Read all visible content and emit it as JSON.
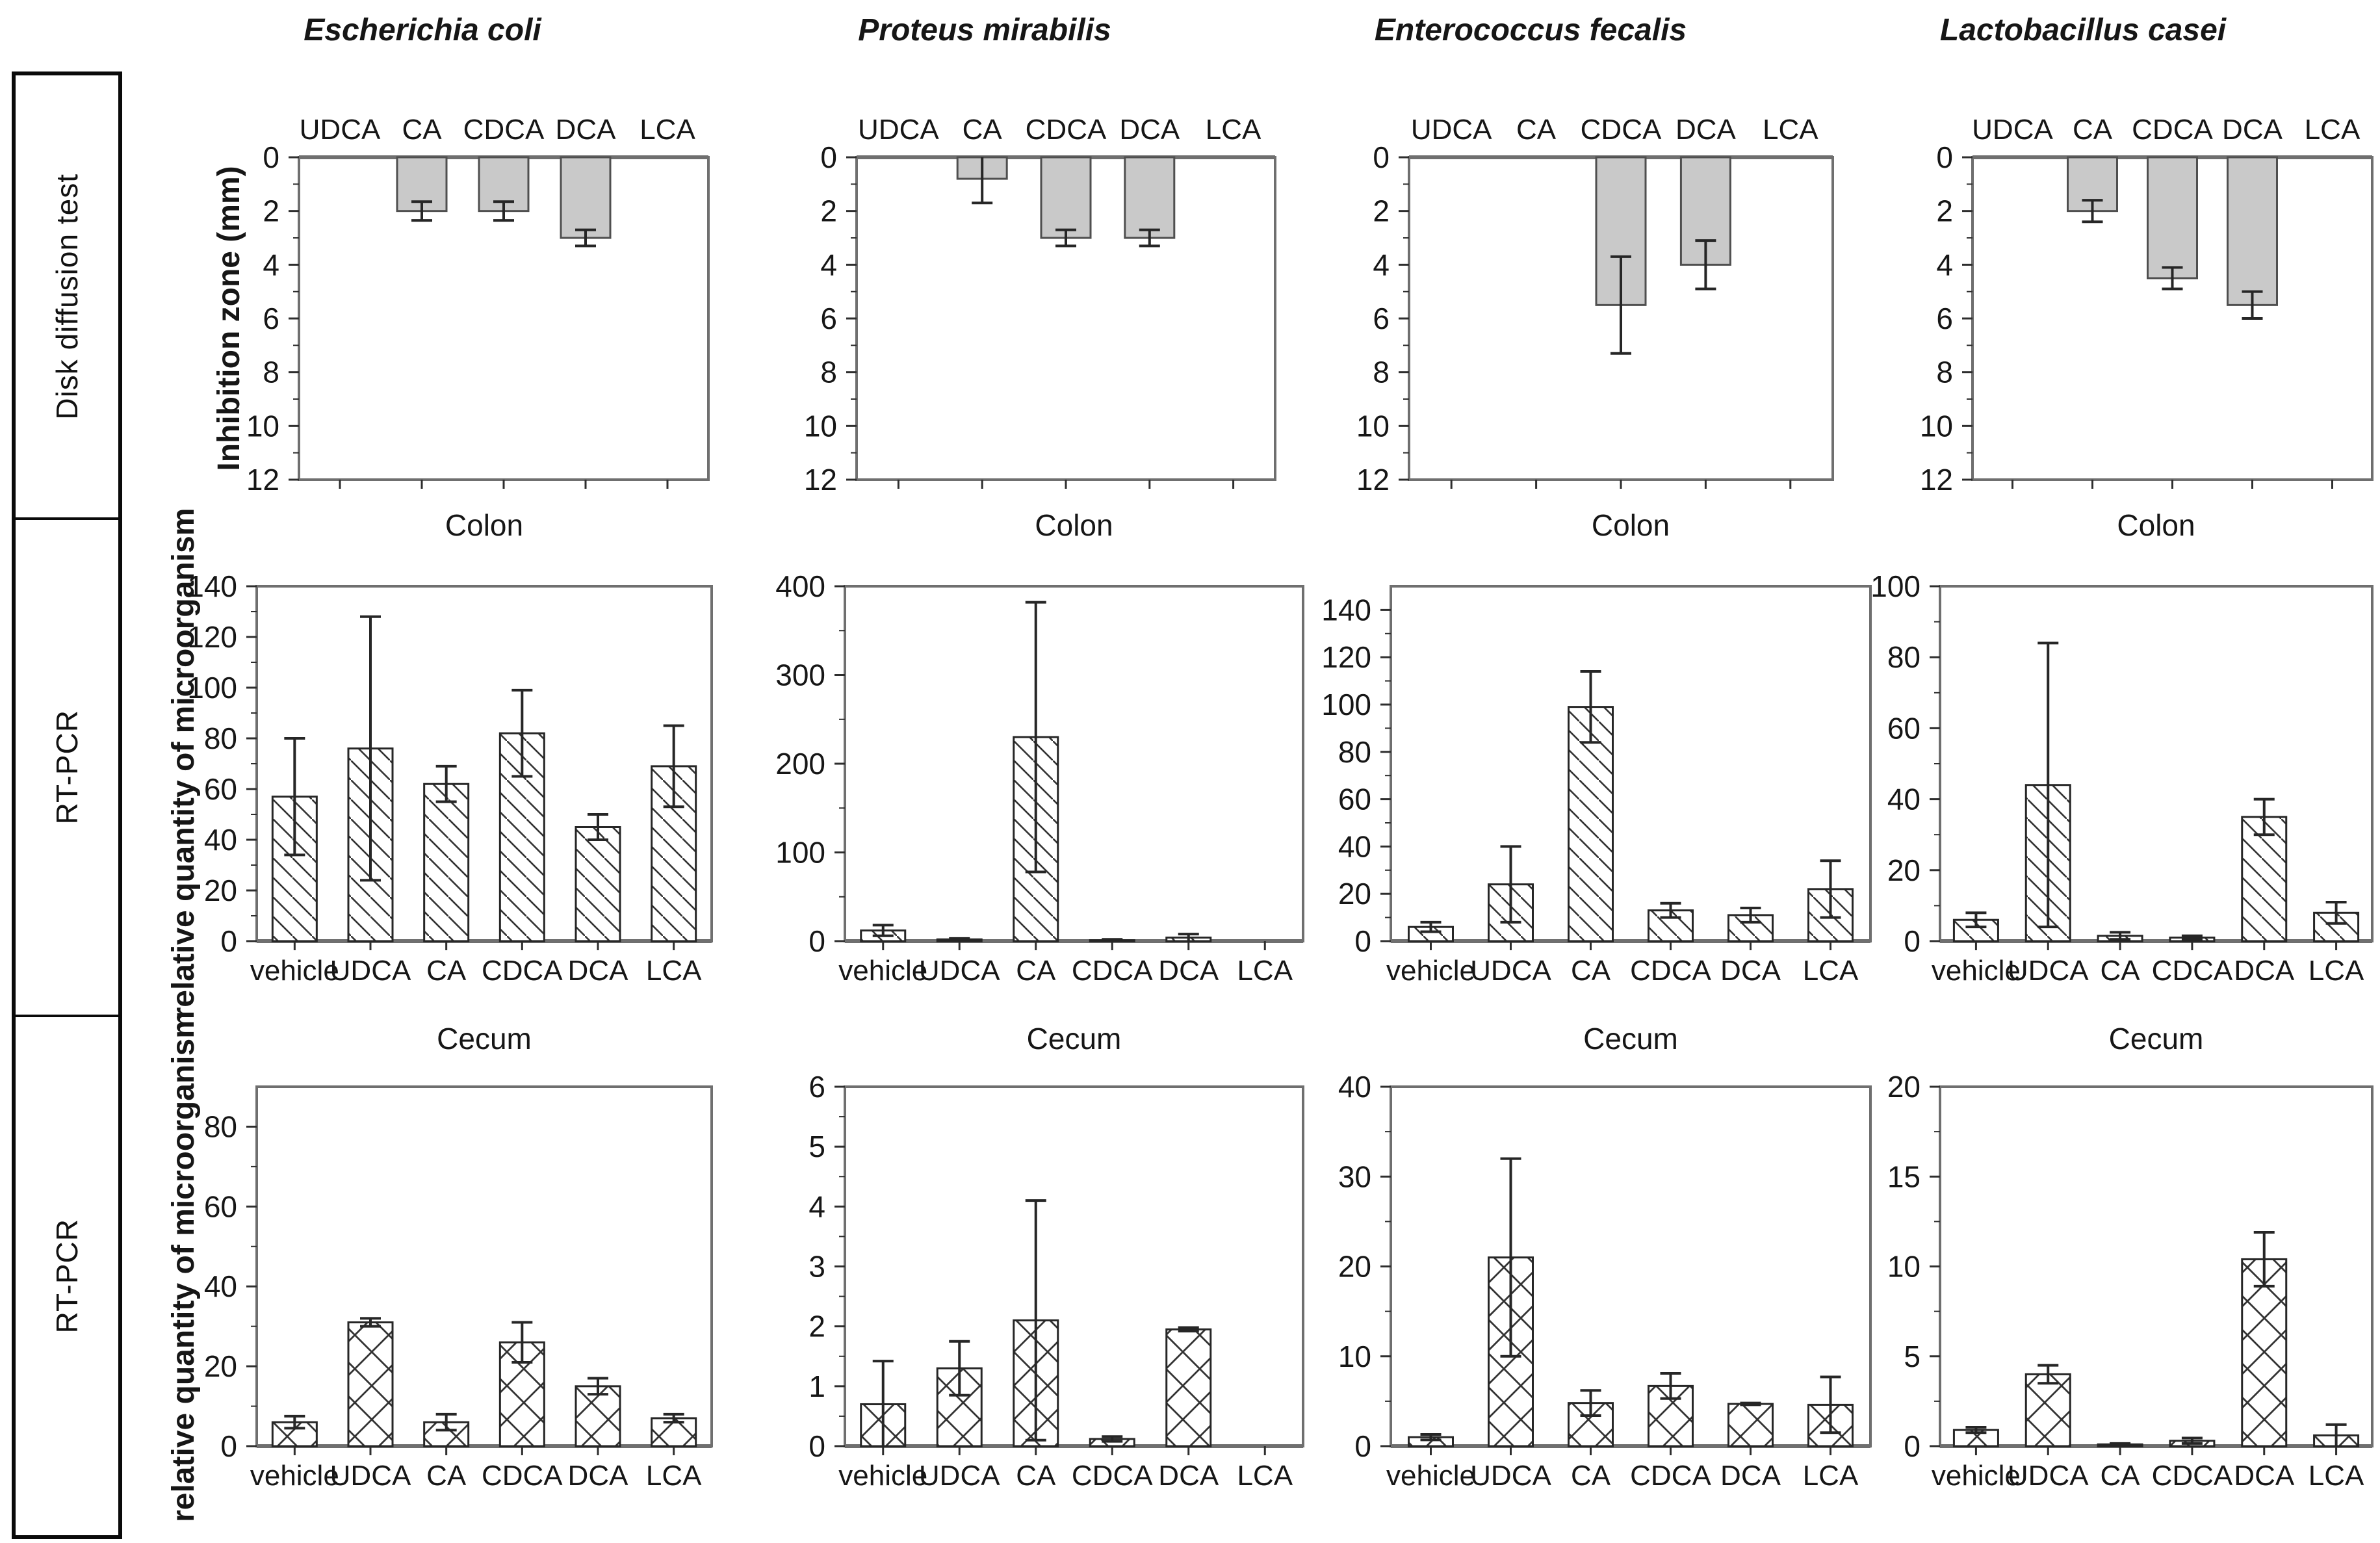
{
  "figure": {
    "row_labels": [
      "Disk diffusion test",
      "RT-PCR",
      "RT-PCR"
    ],
    "column_titles": [
      "Escherichia coli",
      "Proteus mirabilis",
      "Enterococcus fecalis",
      "Lactobacillus casei"
    ],
    "colors": {
      "bar_gray": "#c9c9c9",
      "hatch_line": "#333333",
      "frame": "#6f6f6f",
      "text": "#161616"
    }
  },
  "chart_data": [
    {
      "id": "ecoli-disk",
      "type": "bar",
      "row": 0,
      "col": 0,
      "organism": "Escherichia coli",
      "title": "",
      "ylabel": "Inhibition zone (mm)",
      "y_inverted": true,
      "bar_style": "solid-gray",
      "categories": [
        "UDCA",
        "CA",
        "CDCA",
        "DCA",
        "LCA"
      ],
      "values": [
        0,
        2,
        2,
        3,
        0
      ],
      "errors": [
        0,
        0.35,
        0.35,
        0.3,
        0
      ],
      "ylim": [
        0,
        12
      ],
      "yticks": [
        0,
        2,
        4,
        6,
        8,
        10,
        12
      ]
    },
    {
      "id": "proteus-disk",
      "type": "bar",
      "row": 0,
      "col": 1,
      "organism": "Proteus mirabilis",
      "title": "",
      "ylabel": null,
      "y_inverted": true,
      "bar_style": "solid-gray",
      "categories": [
        "UDCA",
        "CA",
        "CDCA",
        "DCA",
        "LCA"
      ],
      "values": [
        0,
        0.8,
        3,
        3,
        0
      ],
      "errors": [
        0,
        0.9,
        0.3,
        0.3,
        0
      ],
      "ylim": [
        0,
        12
      ],
      "yticks": [
        0,
        2,
        4,
        6,
        8,
        10,
        12
      ]
    },
    {
      "id": "enterococcus-disk",
      "type": "bar",
      "row": 0,
      "col": 2,
      "organism": "Enterococcus fecalis",
      "title": "",
      "ylabel": null,
      "y_inverted": true,
      "bar_style": "solid-gray",
      "categories": [
        "UDCA",
        "CA",
        "CDCA",
        "DCA",
        "LCA"
      ],
      "values": [
        0,
        0,
        5.5,
        4,
        0
      ],
      "errors": [
        0,
        0,
        1.8,
        0.9,
        0
      ],
      "ylim": [
        0,
        12
      ],
      "yticks": [
        0,
        2,
        4,
        6,
        8,
        10,
        12
      ]
    },
    {
      "id": "lactobacillus-disk",
      "type": "bar",
      "row": 0,
      "col": 3,
      "organism": "Lactobacillus casei",
      "title": "",
      "ylabel": null,
      "y_inverted": true,
      "bar_style": "solid-gray",
      "categories": [
        "UDCA",
        "CA",
        "CDCA",
        "DCA",
        "LCA"
      ],
      "values": [
        0,
        2,
        4.5,
        5.5,
        0
      ],
      "errors": [
        0,
        0.4,
        0.4,
        0.5,
        0
      ],
      "ylim": [
        0,
        12
      ],
      "yticks": [
        0,
        2,
        4,
        6,
        8,
        10,
        12
      ]
    },
    {
      "id": "ecoli-colon",
      "type": "bar",
      "row": 1,
      "col": 0,
      "organism": "Escherichia coli",
      "title": "Colon",
      "ylabel": "relative quantity of microorganism",
      "y_inverted": false,
      "bar_style": "hatch-diagonal",
      "categories": [
        "vehicle",
        "UDCA",
        "CA",
        "CDCA",
        "DCA",
        "LCA"
      ],
      "values": [
        57,
        76,
        62,
        82,
        45,
        69
      ],
      "errors": [
        23,
        52,
        7,
        17,
        5,
        16
      ],
      "ylim": [
        0,
        140
      ],
      "yticks": [
        0,
        20,
        40,
        60,
        80,
        100,
        120,
        140
      ]
    },
    {
      "id": "proteus-colon",
      "type": "bar",
      "row": 1,
      "col": 1,
      "organism": "Proteus mirabilis",
      "title": "Colon",
      "ylabel": null,
      "y_inverted": false,
      "bar_style": "hatch-diagonal",
      "categories": [
        "vehicle",
        "UDCA",
        "CA",
        "CDCA",
        "DCA",
        "LCA"
      ],
      "values": [
        12,
        2,
        230,
        1,
        4,
        0
      ],
      "errors": [
        6,
        1,
        152,
        1,
        4,
        0
      ],
      "ylim": [
        0,
        400
      ],
      "yticks": [
        0,
        100,
        200,
        300,
        400
      ]
    },
    {
      "id": "enterococcus-colon",
      "type": "bar",
      "row": 1,
      "col": 2,
      "organism": "Enterococcus fecalis",
      "title": "Colon",
      "ylabel": null,
      "y_inverted": false,
      "bar_style": "hatch-diagonal",
      "categories": [
        "vehicle",
        "UDCA",
        "CA",
        "CDCA",
        "DCA",
        "LCA"
      ],
      "values": [
        6,
        24,
        99,
        13,
        11,
        22
      ],
      "errors": [
        2,
        16,
        15,
        3,
        3,
        12
      ],
      "ylim": [
        0,
        150
      ],
      "yticks": [
        0,
        20,
        40,
        60,
        80,
        100,
        120,
        140
      ]
    },
    {
      "id": "lactobacillus-colon",
      "type": "bar",
      "row": 1,
      "col": 3,
      "organism": "Lactobacillus casei",
      "title": "Colon",
      "ylabel": null,
      "y_inverted": false,
      "bar_style": "hatch-diagonal",
      "categories": [
        "vehicle",
        "UDCA",
        "CA",
        "CDCA",
        "DCA",
        "LCA"
      ],
      "values": [
        6,
        44,
        1.5,
        1,
        35,
        8
      ],
      "errors": [
        2,
        40,
        1,
        0.5,
        5,
        3
      ],
      "ylim": [
        0,
        100
      ],
      "yticks": [
        0,
        20,
        40,
        60,
        80,
        100
      ]
    },
    {
      "id": "ecoli-cecum",
      "type": "bar",
      "row": 2,
      "col": 0,
      "organism": "Escherichia coli",
      "title": "Cecum",
      "ylabel": "relative quantity of microorganism",
      "y_inverted": false,
      "bar_style": "hatch-cross",
      "categories": [
        "vehicle",
        "UDCA",
        "CA",
        "CDCA",
        "DCA",
        "LCA"
      ],
      "values": [
        6,
        31,
        6,
        26,
        15,
        7
      ],
      "errors": [
        1.5,
        1,
        2,
        5,
        2,
        1
      ],
      "ylim": [
        0,
        90
      ],
      "yticks": [
        0,
        20,
        40,
        60,
        80
      ]
    },
    {
      "id": "proteus-cecum",
      "type": "bar",
      "row": 2,
      "col": 1,
      "organism": "Proteus mirabilis",
      "title": "Cecum",
      "ylabel": null,
      "y_inverted": false,
      "bar_style": "hatch-cross",
      "categories": [
        "vehicle",
        "UDCA",
        "CA",
        "CDCA",
        "DCA",
        "LCA"
      ],
      "values": [
        0.7,
        1.3,
        2.1,
        0.12,
        1.95,
        0
      ],
      "errors": [
        0.72,
        0.45,
        2.0,
        0.04,
        0.03,
        0
      ],
      "ylim": [
        0,
        6
      ],
      "yticks": [
        0,
        1,
        2,
        3,
        4,
        5,
        6
      ]
    },
    {
      "id": "enterococcus-cecum",
      "type": "bar",
      "row": 2,
      "col": 2,
      "organism": "Enterococcus fecalis",
      "title": "Cecum",
      "ylabel": null,
      "y_inverted": false,
      "bar_style": "hatch-cross",
      "categories": [
        "vehicle",
        "UDCA",
        "CA",
        "CDCA",
        "DCA",
        "LCA"
      ],
      "values": [
        1,
        21,
        4.8,
        6.7,
        4.7,
        4.6
      ],
      "errors": [
        0.3,
        11,
        1.4,
        1.4,
        0.1,
        3.1
      ],
      "ylim": [
        0,
        40
      ],
      "yticks": [
        0,
        10,
        20,
        30,
        40
      ]
    },
    {
      "id": "lactobacillus-cecum",
      "type": "bar",
      "row": 2,
      "col": 3,
      "organism": "Lactobacillus casei",
      "title": "Cecum",
      "ylabel": null,
      "y_inverted": false,
      "bar_style": "hatch-cross",
      "categories": [
        "vehicle",
        "UDCA",
        "CA",
        "CDCA",
        "DCA",
        "LCA"
      ],
      "values": [
        0.9,
        4,
        0.1,
        0.3,
        10.4,
        0.6
      ],
      "errors": [
        0.15,
        0.5,
        0.05,
        0.15,
        1.5,
        0.6
      ],
      "ylim": [
        0,
        20
      ],
      "yticks": [
        0,
        5,
        10,
        15,
        20
      ]
    }
  ]
}
